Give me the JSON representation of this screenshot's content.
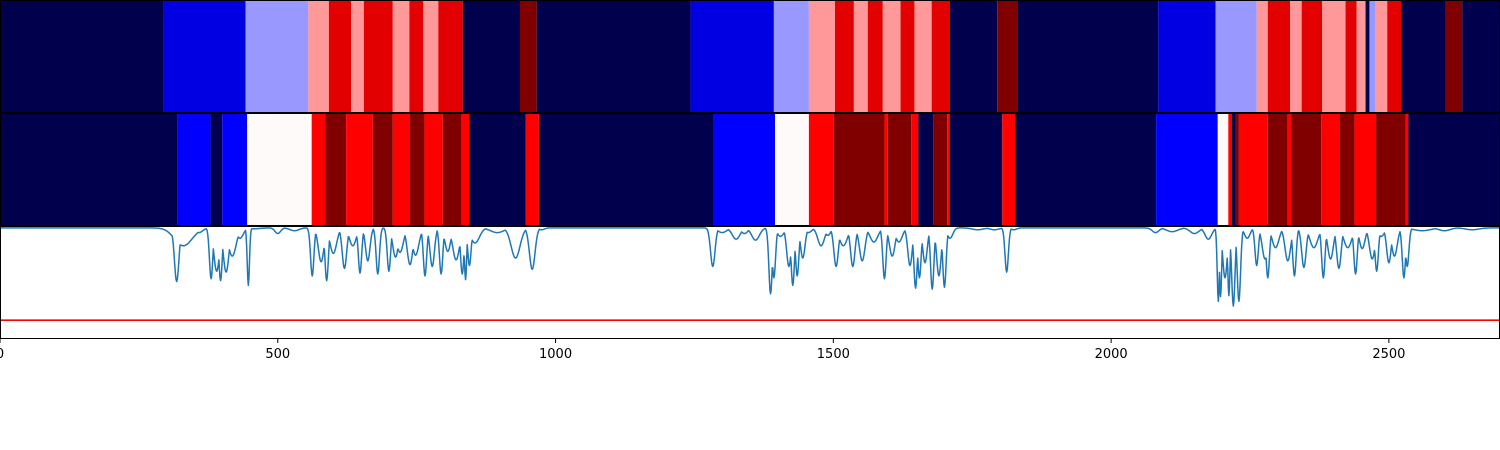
{
  "chart_data": [
    {
      "type": "heatmap",
      "title": "",
      "xlim": [
        0,
        2700
      ],
      "segments": [
        {
          "x0": 0,
          "x1": 295,
          "color": "#00004c"
        },
        {
          "x0": 295,
          "x1": 442,
          "color": "#0000e2"
        },
        {
          "x0": 442,
          "x1": 555,
          "color": "#9898ff"
        },
        {
          "x0": 555,
          "x1": 592,
          "color": "#ff9898"
        },
        {
          "x0": 592,
          "x1": 632,
          "color": "#e20000"
        },
        {
          "x0": 632,
          "x1": 655,
          "color": "#ff9898"
        },
        {
          "x0": 655,
          "x1": 707,
          "color": "#e20000"
        },
        {
          "x0": 707,
          "x1": 737,
          "color": "#ff9898"
        },
        {
          "x0": 737,
          "x1": 762,
          "color": "#e20000"
        },
        {
          "x0": 762,
          "x1": 789,
          "color": "#ff9898"
        },
        {
          "x0": 789,
          "x1": 833,
          "color": "#e20000"
        },
        {
          "x0": 833,
          "x1": 936,
          "color": "#00004c"
        },
        {
          "x0": 936,
          "x1": 966,
          "color": "#800000"
        },
        {
          "x0": 966,
          "x1": 1243,
          "color": "#00004c"
        },
        {
          "x0": 1243,
          "x1": 1393,
          "color": "#0000e2"
        },
        {
          "x0": 1393,
          "x1": 1456,
          "color": "#9898ff"
        },
        {
          "x0": 1456,
          "x1": 1503,
          "color": "#ff9898"
        },
        {
          "x0": 1503,
          "x1": 1537,
          "color": "#e20000"
        },
        {
          "x0": 1537,
          "x1": 1562,
          "color": "#ff9898"
        },
        {
          "x0": 1562,
          "x1": 1589,
          "color": "#e20000"
        },
        {
          "x0": 1589,
          "x1": 1621,
          "color": "#ff9898"
        },
        {
          "x0": 1621,
          "x1": 1646,
          "color": "#e20000"
        },
        {
          "x0": 1646,
          "x1": 1677,
          "color": "#ff9898"
        },
        {
          "x0": 1677,
          "x1": 1710,
          "color": "#e20000"
        },
        {
          "x0": 1710,
          "x1": 1795,
          "color": "#00004c"
        },
        {
          "x0": 1795,
          "x1": 1831,
          "color": "#800000"
        },
        {
          "x0": 1831,
          "x1": 2085,
          "color": "#00004c"
        },
        {
          "x0": 2085,
          "x1": 2188,
          "color": "#0000e2"
        },
        {
          "x0": 2188,
          "x1": 2262,
          "color": "#9898ff"
        },
        {
          "x0": 2262,
          "x1": 2282,
          "color": "#ff9898"
        },
        {
          "x0": 2282,
          "x1": 2322,
          "color": "#e20000"
        },
        {
          "x0": 2322,
          "x1": 2343,
          "color": "#ff9898"
        },
        {
          "x0": 2343,
          "x1": 2380,
          "color": "#e20000"
        },
        {
          "x0": 2380,
          "x1": 2422,
          "color": "#ff9898"
        },
        {
          "x0": 2422,
          "x1": 2442,
          "color": "#e20000"
        },
        {
          "x0": 2442,
          "x1": 2458,
          "color": "#ff9898"
        },
        {
          "x0": 2458,
          "x1": 2465,
          "color": "#00004c"
        },
        {
          "x0": 2465,
          "x1": 2475,
          "color": "#9898ff"
        },
        {
          "x0": 2475,
          "x1": 2497,
          "color": "#ff9898"
        },
        {
          "x0": 2497,
          "x1": 2522,
          "color": "#e20000"
        },
        {
          "x0": 2522,
          "x1": 2602,
          "color": "#00004c"
        },
        {
          "x0": 2602,
          "x1": 2632,
          "color": "#800000"
        },
        {
          "x0": 2632,
          "x1": 2700,
          "color": "#00004c"
        }
      ]
    },
    {
      "type": "heatmap",
      "title": "",
      "xlim": [
        0,
        2700
      ],
      "segments": [
        {
          "x0": 0,
          "x1": 320,
          "color": "#00004c"
        },
        {
          "x0": 320,
          "x1": 379,
          "color": "#0000ff"
        },
        {
          "x0": 379,
          "x1": 400,
          "color": "#00004c"
        },
        {
          "x0": 400,
          "x1": 445,
          "color": "#0000ff"
        },
        {
          "x0": 445,
          "x1": 561,
          "color": "#fffafa"
        },
        {
          "x0": 561,
          "x1": 585,
          "color": "#ff0000"
        },
        {
          "x0": 585,
          "x1": 623,
          "color": "#800000"
        },
        {
          "x0": 623,
          "x1": 671,
          "color": "#ff0000"
        },
        {
          "x0": 671,
          "x1": 707,
          "color": "#800000"
        },
        {
          "x0": 707,
          "x1": 738,
          "color": "#ff0000"
        },
        {
          "x0": 738,
          "x1": 764,
          "color": "#800000"
        },
        {
          "x0": 764,
          "x1": 797,
          "color": "#ff0000"
        },
        {
          "x0": 797,
          "x1": 831,
          "color": "#800000"
        },
        {
          "x0": 831,
          "x1": 845,
          "color": "#ff0000"
        },
        {
          "x0": 845,
          "x1": 946,
          "color": "#00004c"
        },
        {
          "x0": 946,
          "x1": 970,
          "color": "#ff0000"
        },
        {
          "x0": 970,
          "x1": 1285,
          "color": "#00004c"
        },
        {
          "x0": 1285,
          "x1": 1395,
          "color": "#0000ff"
        },
        {
          "x0": 1395,
          "x1": 1456,
          "color": "#fffafa"
        },
        {
          "x0": 1456,
          "x1": 1501,
          "color": "#ff0000"
        },
        {
          "x0": 1501,
          "x1": 1592,
          "color": "#800000"
        },
        {
          "x0": 1592,
          "x1": 1598,
          "color": "#ff0000"
        },
        {
          "x0": 1598,
          "x1": 1640,
          "color": "#800000"
        },
        {
          "x0": 1640,
          "x1": 1653,
          "color": "#ff0000"
        },
        {
          "x0": 1653,
          "x1": 1680,
          "color": "#00004c"
        },
        {
          "x0": 1680,
          "x1": 1705,
          "color": "#800000"
        },
        {
          "x0": 1705,
          "x1": 1710,
          "color": "#ff0000"
        },
        {
          "x0": 1710,
          "x1": 1804,
          "color": "#00004c"
        },
        {
          "x0": 1804,
          "x1": 1827,
          "color": "#ff0000"
        },
        {
          "x0": 1827,
          "x1": 2081,
          "color": "#00004c"
        },
        {
          "x0": 2081,
          "x1": 2192,
          "color": "#0000ff"
        },
        {
          "x0": 2192,
          "x1": 2211,
          "color": "#fffafa"
        },
        {
          "x0": 2211,
          "x1": 2217,
          "color": "#ff0000"
        },
        {
          "x0": 2217,
          "x1": 2224,
          "color": "#00004c"
        },
        {
          "x0": 2224,
          "x1": 2230,
          "color": "#800000"
        },
        {
          "x0": 2230,
          "x1": 2282,
          "color": "#ff0000"
        },
        {
          "x0": 2282,
          "x1": 2318,
          "color": "#800000"
        },
        {
          "x0": 2318,
          "x1": 2324,
          "color": "#ff0000"
        },
        {
          "x0": 2324,
          "x1": 2378,
          "color": "#800000"
        },
        {
          "x0": 2378,
          "x1": 2412,
          "color": "#ff0000"
        },
        {
          "x0": 2412,
          "x1": 2438,
          "color": "#800000"
        },
        {
          "x0": 2438,
          "x1": 2477,
          "color": "#ff0000"
        },
        {
          "x0": 2477,
          "x1": 2530,
          "color": "#800000"
        },
        {
          "x0": 2530,
          "x1": 2535,
          "color": "#ff0000"
        },
        {
          "x0": 2535,
          "x1": 2700,
          "color": "#00004c"
        }
      ]
    },
    {
      "type": "line",
      "title": "",
      "xlabel": "",
      "ylabel": "",
      "xlim": [
        0,
        2700
      ],
      "ylim": [
        -0.2,
        1.0
      ],
      "xticks": [
        0,
        500,
        1000,
        1500,
        2000,
        2500
      ],
      "tick_labels": [
        "0",
        "500",
        "1000",
        "1500",
        "2000",
        "2500"
      ],
      "grid": false,
      "threshold": {
        "y": 0.0,
        "color": "#ff0000"
      },
      "series": [
        {
          "color": "#1f77b4",
          "baseline": 0.98,
          "dips": [
            [
              318,
              0.41,
              4
            ],
            [
              330,
              0.79,
              16
            ],
            [
              358,
              0.93,
              7
            ],
            [
              380,
              0.44,
              3
            ],
            [
              390,
              0.52,
              5
            ],
            [
              397,
              0.42,
              3
            ],
            [
              407,
              0.51,
              5
            ],
            [
              418,
              0.68,
              7
            ],
            [
              432,
              0.87,
              6
            ],
            [
              447,
              0.37,
              2
            ],
            [
              455,
              0.97,
              12
            ],
            [
              500,
              0.92,
              5
            ],
            [
              530,
              0.95,
              8
            ],
            [
              562,
              0.47,
              3
            ],
            [
              578,
              0.62,
              5
            ],
            [
              588,
              0.42,
              3
            ],
            [
              600,
              0.71,
              6
            ],
            [
              620,
              0.55,
              4
            ],
            [
              635,
              0.79,
              6
            ],
            [
              648,
              0.5,
              3
            ],
            [
              662,
              0.63,
              4
            ],
            [
              680,
              0.49,
              3
            ],
            [
              700,
              0.52,
              3
            ],
            [
              712,
              0.67,
              5
            ],
            [
              720,
              0.72,
              6
            ],
            [
              738,
              0.59,
              5
            ],
            [
              748,
              0.69,
              6
            ],
            [
              765,
              0.47,
              3
            ],
            [
              778,
              0.57,
              4
            ],
            [
              794,
              0.49,
              3
            ],
            [
              806,
              0.73,
              5
            ],
            [
              821,
              0.64,
              6
            ],
            [
              832,
              0.49,
              3
            ],
            [
              838,
              0.43,
              2
            ],
            [
              845,
              0.58,
              3
            ],
            [
              855,
              0.82,
              8
            ],
            [
              895,
              0.93,
              12
            ],
            [
              928,
              0.66,
              8
            ],
            [
              958,
              0.54,
              5
            ],
            [
              975,
              0.96,
              5
            ],
            [
              1283,
              0.57,
              4
            ],
            [
              1300,
              0.93,
              8
            ],
            [
              1325,
              0.86,
              7
            ],
            [
              1340,
              0.92,
              6
            ],
            [
              1360,
              0.85,
              7
            ],
            [
              1387,
              0.28,
              3
            ],
            [
              1393,
              0.45,
              3
            ],
            [
              1405,
              0.89,
              6
            ],
            [
              1420,
              0.57,
              4
            ],
            [
              1427,
              0.37,
              3
            ],
            [
              1435,
              0.47,
              3
            ],
            [
              1445,
              0.66,
              4
            ],
            [
              1455,
              0.93,
              6
            ],
            [
              1478,
              0.79,
              6
            ],
            [
              1490,
              0.9,
              5
            ],
            [
              1505,
              0.57,
              4
            ],
            [
              1518,
              0.79,
              7
            ],
            [
              1535,
              0.57,
              4
            ],
            [
              1552,
              0.63,
              5
            ],
            [
              1573,
              0.83,
              7
            ],
            [
              1592,
              0.44,
              3
            ],
            [
              1606,
              0.68,
              5
            ],
            [
              1618,
              0.83,
              6
            ],
            [
              1638,
              0.58,
              4
            ],
            [
              1648,
              0.34,
              3
            ],
            [
              1655,
              0.45,
              3
            ],
            [
              1665,
              0.61,
              4
            ],
            [
              1678,
              0.33,
              3
            ],
            [
              1690,
              0.47,
              4
            ],
            [
              1700,
              0.35,
              3
            ],
            [
              1710,
              0.87,
              5
            ],
            [
              1760,
              0.96,
              10
            ],
            [
              1790,
              0.96,
              8
            ],
            [
              1812,
              0.51,
              3
            ],
            [
              1825,
              0.96,
              5
            ],
            [
              2080,
              0.93,
              6
            ],
            [
              2110,
              0.94,
              10
            ],
            [
              2150,
              0.92,
              8
            ],
            [
              2175,
              0.86,
              6
            ],
            [
              2193,
              0.2,
              2
            ],
            [
              2197,
              0.25,
              2
            ],
            [
              2205,
              0.45,
              4
            ],
            [
              2212,
              0.26,
              2
            ],
            [
              2220,
              0.15,
              3
            ],
            [
              2230,
              0.2,
              3
            ],
            [
              2245,
              0.87,
              5
            ],
            [
              2262,
              0.58,
              3
            ],
            [
              2277,
              0.65,
              5
            ],
            [
              2282,
              0.45,
              3
            ],
            [
              2296,
              0.77,
              6
            ],
            [
              2318,
              0.63,
              5
            ],
            [
              2330,
              0.47,
              3
            ],
            [
              2347,
              0.56,
              4
            ],
            [
              2365,
              0.77,
              7
            ],
            [
              2382,
              0.45,
              3
            ],
            [
              2395,
              0.65,
              5
            ],
            [
              2410,
              0.55,
              4
            ],
            [
              2426,
              0.77,
              7
            ],
            [
              2440,
              0.49,
              3
            ],
            [
              2452,
              0.76,
              5
            ],
            [
              2470,
              0.65,
              5
            ],
            [
              2478,
              0.52,
              3
            ],
            [
              2486,
              0.89,
              6
            ],
            [
              2500,
              0.61,
              4
            ],
            [
              2510,
              0.68,
              5
            ],
            [
              2527,
              0.45,
              3
            ],
            [
              2533,
              0.57,
              3
            ],
            [
              2560,
              0.95,
              15
            ],
            [
              2600,
              0.95,
              10
            ],
            [
              2650,
              0.96,
              12
            ],
            [
              2690,
              0.99,
              5
            ]
          ]
        }
      ]
    }
  ]
}
